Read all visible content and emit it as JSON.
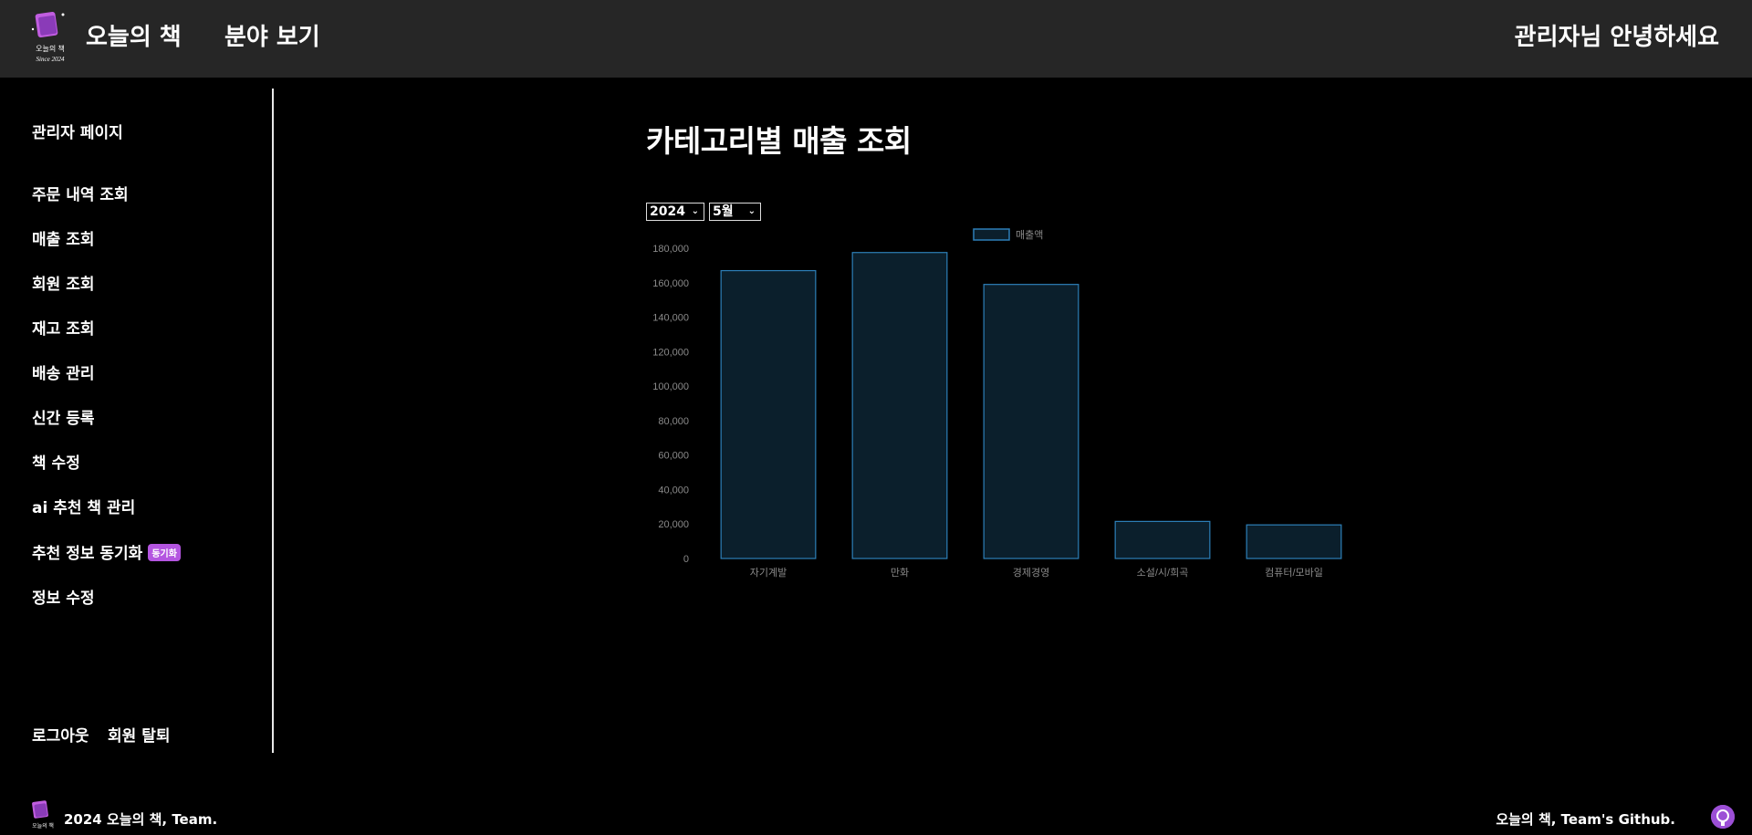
{
  "header": {
    "logo_text": "오늘의 책",
    "logo_sub": "Since 2024",
    "brand": "오늘의 책",
    "browse": "분야 보기",
    "greeting": "관리자님 안녕하세요"
  },
  "sidebar": {
    "title": "관리자 페이지",
    "items": [
      {
        "label": "주문 내역 조회"
      },
      {
        "label": "매출 조회"
      },
      {
        "label": "회원 조회"
      },
      {
        "label": "재고 조회"
      },
      {
        "label": "배송 관리"
      },
      {
        "label": "신간 등록"
      },
      {
        "label": "책 수정"
      },
      {
        "label": "ai 추천 책 관리"
      },
      {
        "label": "추천 정보 동기화"
      },
      {
        "label": "정보 수정"
      }
    ],
    "sync_badge": "동기화",
    "logout": "로그아웃",
    "withdraw": "회원 탈퇴"
  },
  "main": {
    "title": "카테고리별 매출 조회",
    "year": "2024",
    "month": "5월"
  },
  "chart_data": {
    "type": "bar",
    "categories": [
      "자기계발",
      "만화",
      "경제경영",
      "소설/시/희곡",
      "컴퓨터/모바일"
    ],
    "series": [
      {
        "name": "매출액",
        "values": [
          167000,
          177500,
          159000,
          21500,
          19500
        ]
      }
    ],
    "yticks": [
      "0",
      "20,000",
      "40,000",
      "60,000",
      "80,000",
      "100,000",
      "120,000",
      "140,000",
      "160,000",
      "180,000"
    ],
    "ylim": [
      0,
      180000
    ],
    "legend": "top-center",
    "colors": {
      "bar_fill": "#0b1f2c",
      "bar_stroke": "#2d7fb8",
      "tick": "#8a8a8a"
    }
  },
  "footer": {
    "copyright": "2024 오늘의 책, Team.",
    "github": "오늘의 책, Team's Github.",
    "logo_text": "오늘의 책"
  },
  "icons": {
    "logo": "book-logo-icon",
    "github": "github-icon",
    "chevron": "chevron-down-icon"
  }
}
